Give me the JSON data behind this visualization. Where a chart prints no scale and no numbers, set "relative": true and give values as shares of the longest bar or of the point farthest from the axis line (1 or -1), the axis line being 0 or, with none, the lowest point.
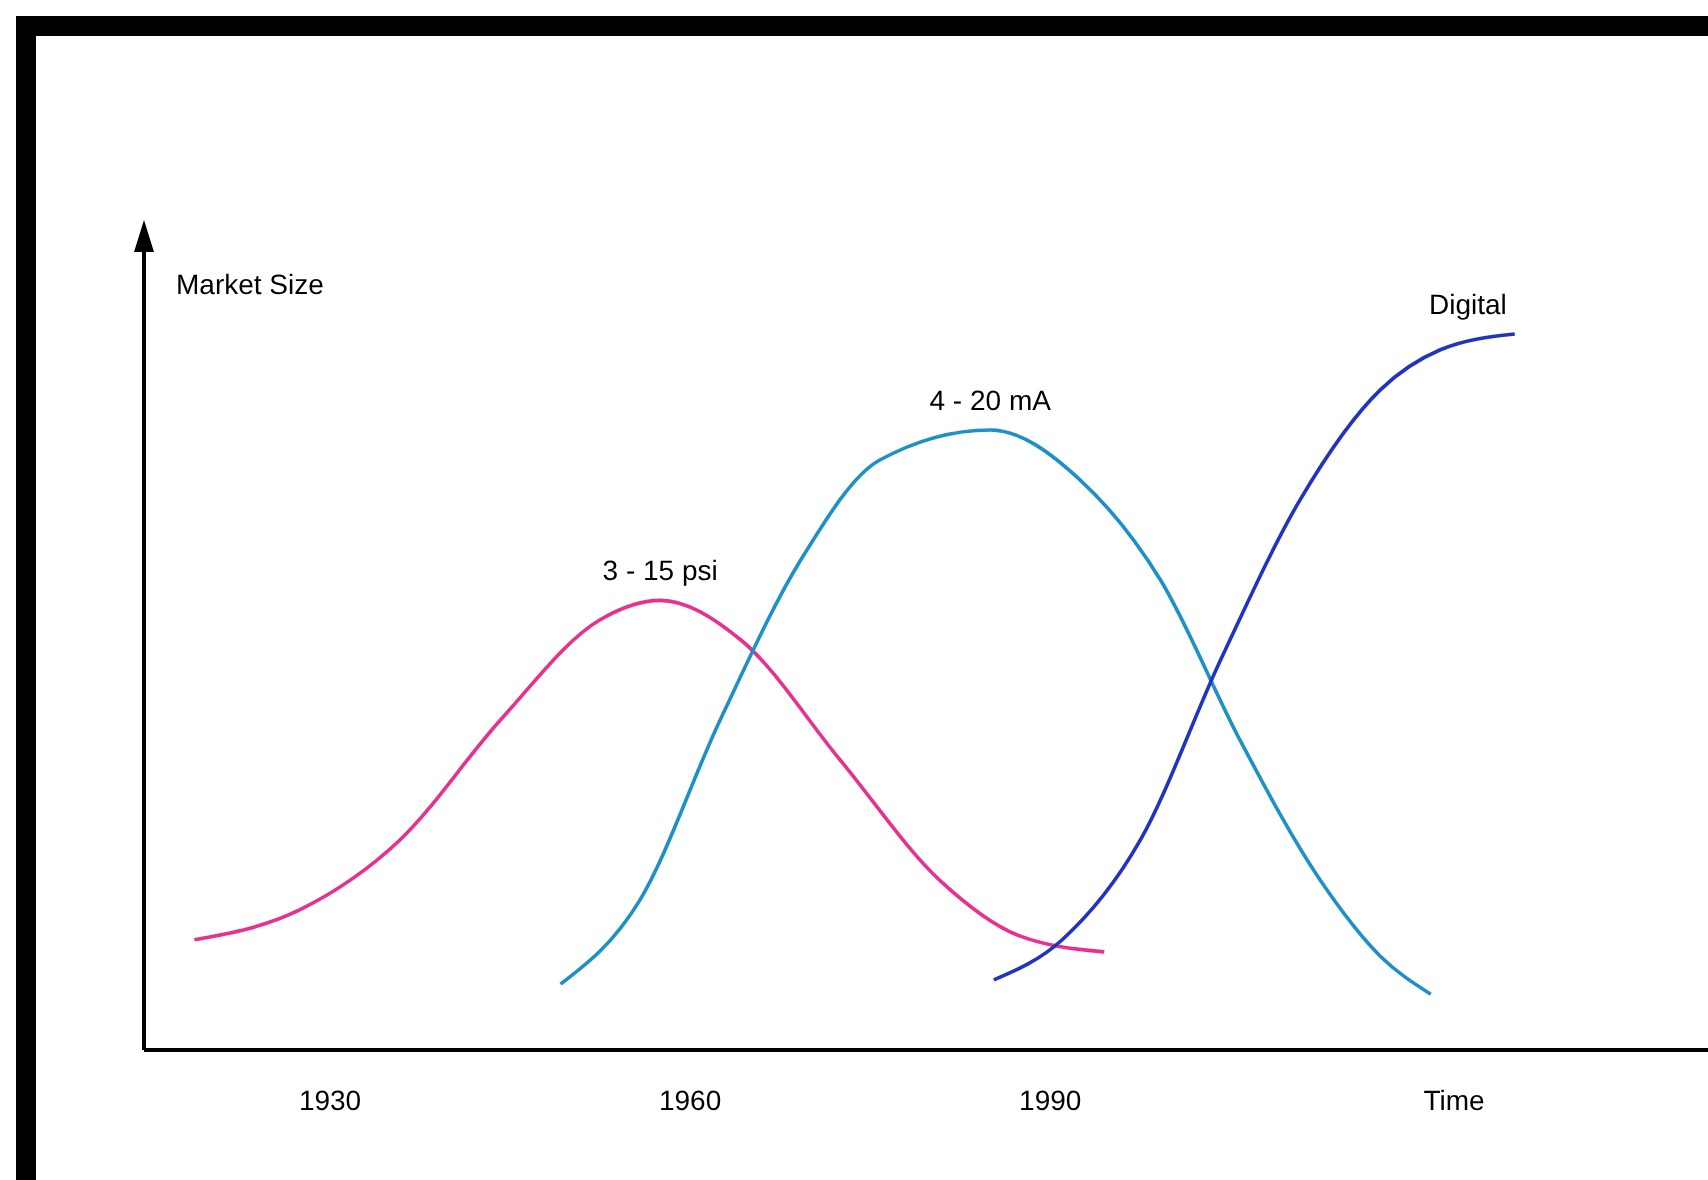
{
  "chart_data": {
    "type": "line",
    "relative": true,
    "ylabel": "Market Size",
    "xlabel": "Time",
    "xlim": [
      1914.5,
      2044.8
    ],
    "xticks": [
      1930,
      1960,
      1990
    ],
    "grid": false,
    "marker": "none",
    "line_style": "solid",
    "series": [
      {
        "name": "3 - 15 psi",
        "color": "#e8318f",
        "x": [
          1918.7,
          1927.5,
          1935.8,
          1944.2,
          1952.5,
          1957.5,
          1964.2,
          1972.5,
          1980.8,
          1987.5,
          1994.5
        ],
        "values": [
          0.154,
          0.196,
          0.293,
          0.461,
          0.601,
          0.628,
          0.573,
          0.405,
          0.237,
          0.159,
          0.137
        ]
      },
      {
        "name": "4 - 20 mA",
        "color": "#1e90c8",
        "x": [
          1949.2,
          1955.8,
          1962.5,
          1969.2,
          1975.8,
          1985,
          1992.5,
          1999.2,
          2005.8,
          2012.5,
          2017.5,
          2021.7
        ],
        "values": [
          0.092,
          0.209,
          0.461,
          0.684,
          0.824,
          0.866,
          0.796,
          0.656,
          0.433,
          0.237,
          0.131,
          0.078
        ]
      },
      {
        "name": "Digital",
        "color": "#2034c0",
        "x": [
          1985.3,
          1991,
          1997.5,
          2004.2,
          2010.8,
          2017.5,
          2022.5,
          2028.7
        ],
        "values": [
          0.098,
          0.154,
          0.293,
          0.545,
          0.768,
          0.922,
          0.978,
          1
        ]
      }
    ]
  }
}
